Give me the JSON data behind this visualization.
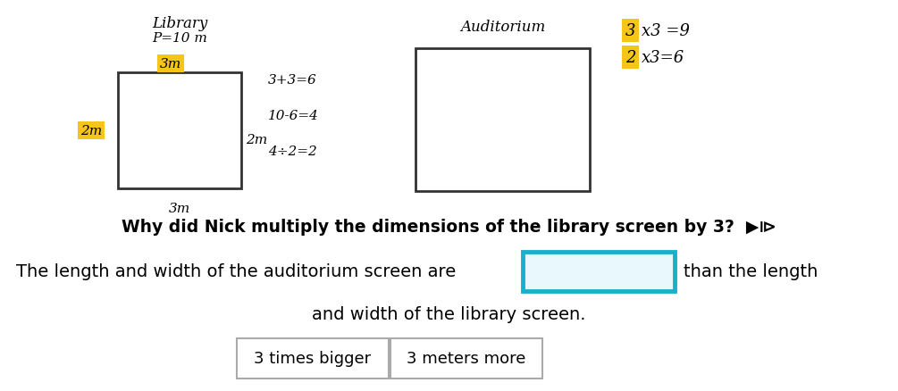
{
  "bg_color": "#ffffff",
  "library_label": "Library",
  "library_perimeter": "P=10 m",
  "library_width_top_label": "3m",
  "library_width_top_label_color": "#f5c518",
  "library_height_label": "2m",
  "library_height_label_color": "#f5c518",
  "library_bottom_label": "3m",
  "library_right_label": "2m",
  "middle_text": [
    "3+3=6",
    "10-6=4",
    "4÷2=2"
  ],
  "auditorium_label": "Auditorium",
  "top_right_num1": "3",
  "top_right_rest1": "x3 =9",
  "top_right_num2": "2",
  "top_right_rest2": "x3=6",
  "top_right_highlight_color": "#f5c518",
  "question_text": "Why did Nick multiply the dimensions of the library screen by 3?",
  "speaker_symbol": "◂⧐",
  "sentence_part1": "The length and width of the auditorium screen are",
  "sentence_part2": "than the length",
  "sentence_part3": "and width of the library screen.",
  "answer_box_color": "#1ab0cc",
  "button1": "3 times bigger",
  "button2": "3 meters more",
  "button_border_color": "#aaaaaa"
}
